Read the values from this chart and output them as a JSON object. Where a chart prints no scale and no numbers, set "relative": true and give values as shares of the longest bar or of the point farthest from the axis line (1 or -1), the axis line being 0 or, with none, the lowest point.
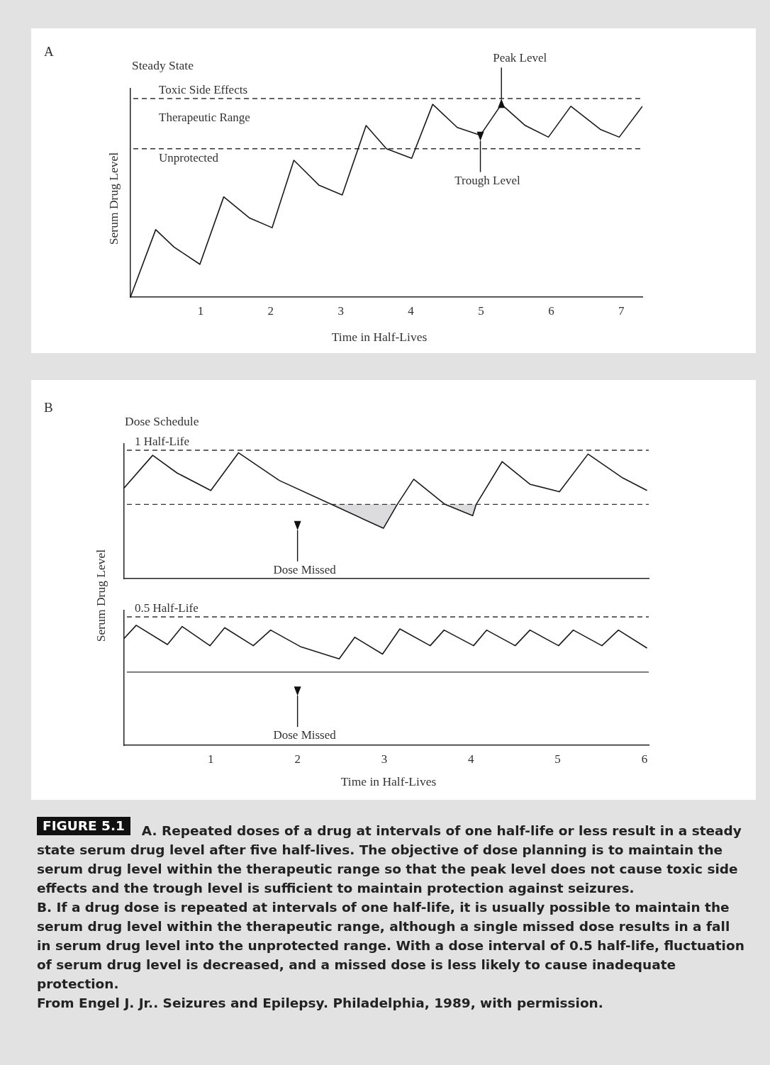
{
  "chart_data": [
    {
      "type": "line",
      "title": "A",
      "subtitle": "Steady State",
      "xlabel": "Time in Half-Lives",
      "ylabel": "Serum Drug Level",
      "relative": true,
      "tick_labels": "x",
      "xlim": [
        0,
        7.3
      ],
      "xticks": [
        1,
        2,
        3,
        4,
        5,
        6,
        7
      ],
      "x": [
        0,
        0.36,
        0.62,
        0.99,
        1.33,
        1.7,
        2.02,
        2.33,
        2.69,
        3.02,
        3.36,
        3.65,
        4.01,
        4.31,
        4.66,
        4.99,
        5.29,
        5.63,
        5.96,
        6.28,
        6.7,
        6.97,
        7.3
      ],
      "series": [
        {
          "color": "#1a1a1a",
          "values": [
            0,
            0.35,
            0.26,
            0.17,
            0.52,
            0.41,
            0.36,
            0.71,
            0.58,
            0.53,
            0.89,
            0.77,
            0.72,
            1.0,
            0.88,
            0.84,
            1.0,
            0.89,
            0.83,
            0.99,
            0.87,
            0.83,
            0.99
          ]
        }
      ],
      "ref_lines": [
        {
          "axis": "y",
          "value": 1.03,
          "label": "Toxic Side Effects",
          "line_style": "dashed",
          "color": "#333333"
        },
        {
          "axis": "y",
          "value": 0.77,
          "label": "Unprotected",
          "line_style": "dashed",
          "color": "#333333"
        }
      ],
      "annotations": [
        "Therapeutic Range",
        {
          "text": "Peak Level",
          "x": 5.29,
          "y": 1.0
        },
        {
          "text": "Trough Level",
          "x": 4.99,
          "y": 0.84
        }
      ]
    },
    {
      "type": "line",
      "title": "B",
      "subtitle": "Dose Schedule",
      "ylabel": "Serum Drug Level",
      "relative": true,
      "tick_labels": false,
      "xlim": [
        0,
        6.05
      ],
      "x": [
        0,
        0.33,
        0.61,
        1.0,
        1.32,
        1.79,
        2.39,
        2.99,
        3.15,
        3.34,
        3.7,
        4.02,
        4.06,
        4.36,
        4.68,
        5.02,
        5.35,
        5.75,
        6.03
      ],
      "series": [
        {
          "color": "#1a1a1a",
          "values": [
            0.72,
            0.98,
            0.84,
            0.7,
            1.0,
            0.78,
            0.59,
            0.4,
            0.59,
            0.79,
            0.59,
            0.5,
            0.59,
            0.93,
            0.75,
            0.69,
            0.99,
            0.8,
            0.7
          ],
          "lower": [
            null,
            null,
            null,
            null,
            null,
            null,
            0.59,
            0.4,
            0.59,
            null,
            0.59,
            0.5,
            0.59,
            null,
            null,
            null,
            null,
            null,
            null
          ],
          "upper": [
            null,
            null,
            null,
            null,
            null,
            null,
            0.59,
            0.59,
            0.59,
            null,
            0.59,
            0.59,
            0.59,
            null,
            null,
            null,
            null,
            null,
            null
          ]
        }
      ],
      "ref_lines": [
        {
          "axis": "y",
          "value": 1.02,
          "label": "1 Half-Life",
          "line_style": "dashed",
          "color": "#333333"
        },
        {
          "axis": "y",
          "value": 0.59,
          "line_style": "dashed",
          "color": "#333333"
        }
      ],
      "annotations": [
        {
          "text": "Dose Missed",
          "x": 2.0,
          "y": 0.43
        }
      ]
    },
    {
      "type": "line",
      "xlabel": "Time in Half-Lives",
      "relative": true,
      "tick_labels": "x",
      "xlim": [
        0,
        6.05
      ],
      "xticks": [
        1,
        2,
        3,
        4,
        5,
        6
      ],
      "x": [
        0,
        0.14,
        0.5,
        0.67,
        0.99,
        1.16,
        1.49,
        1.69,
        2.04,
        2.48,
        2.66,
        2.98,
        3.18,
        3.53,
        3.69,
        4.03,
        4.18,
        4.51,
        4.68,
        5.01,
        5.18,
        5.51,
        5.7,
        6.03
      ],
      "series": [
        {
          "color": "#1a1a1a",
          "values": [
            0.89,
            1.0,
            0.84,
            0.99,
            0.83,
            0.98,
            0.83,
            0.96,
            0.82,
            0.72,
            0.9,
            0.76,
            0.97,
            0.83,
            0.96,
            0.83,
            0.96,
            0.83,
            0.96,
            0.83,
            0.96,
            0.83,
            0.96,
            0.81
          ]
        }
      ],
      "ref_lines": [
        {
          "axis": "y",
          "value": 1.07,
          "label": "0.5 Half-Life",
          "line_style": "dashed",
          "color": "#333333"
        },
        {
          "axis": "y",
          "value": 0.61,
          "line_style": "solid",
          "color": "#333333"
        }
      ],
      "annotations": [
        {
          "text": "Dose Missed",
          "x": 2.0,
          "y": 0.46
        },
        "FIGURE 5.1",
        "A.  Repeated doses of a drug at intervals of one half-life or less result in a steady state serum drug level after five half-lives. The objective of dose planning is to maintain the serum drug level within the therapeutic range so that the peak level does not cause toxic side effects and the trough level is sufficient to maintain protection against seizures.",
        "B.  If a drug dose is repeated at intervals of one half-life, it is usually possible to maintain the serum drug level within the therapeutic range, although a single missed dose results in a fall in serum drug level into the unprotected range. With a dose interval of 0.5 half-life, fluctuation of serum drug level is decreased, and a missed dose is less likely to cause inadequate protection.",
        "From Engel J. Jr.. Seizures and Epilepsy. Philadelphia, 1989, with permission."
      ]
    }
  ]
}
